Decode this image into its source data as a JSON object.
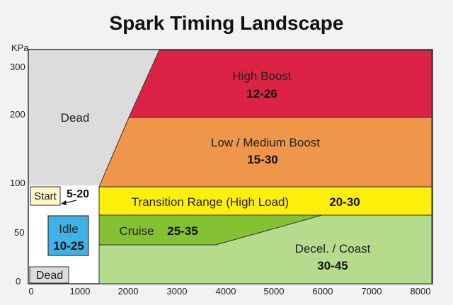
{
  "title": "Spark Timing Landscape",
  "y_axis": {
    "unit_label": "KPa",
    "ticks": [
      "300",
      "200",
      "100",
      "50",
      "0"
    ]
  },
  "x_axis": {
    "ticks": [
      "0",
      "1000",
      "2000",
      "3000",
      "4000",
      "5000",
      "6000",
      "7000",
      "8000"
    ]
  },
  "zones": {
    "dead_top": {
      "label": "Dead",
      "color": "#dcdcdc"
    },
    "high_boost": {
      "label": "High Boost",
      "value": "12-26",
      "color": "#dc2346"
    },
    "low_medium_boost": {
      "label": "Low / Medium Boost",
      "value": "15-30",
      "color": "#f0964a"
    },
    "start": {
      "label": "Start",
      "value": "5-20",
      "color": "#fff6c8"
    },
    "transition": {
      "label": "Transition Range (High Load)",
      "value": "20-30",
      "color": "#ffef0a"
    },
    "cruise": {
      "label": "Cruise",
      "value": "25-35",
      "color": "#84c234"
    },
    "idle": {
      "label": "Idle",
      "value": "10-25",
      "color": "#3fb1e6"
    },
    "decel": {
      "label": "Decel. / Coast",
      "value": "30-45",
      "color": "#b5db8d"
    },
    "dead_bottom": {
      "label": "Dead",
      "color": "#dcdcdc"
    }
  }
}
